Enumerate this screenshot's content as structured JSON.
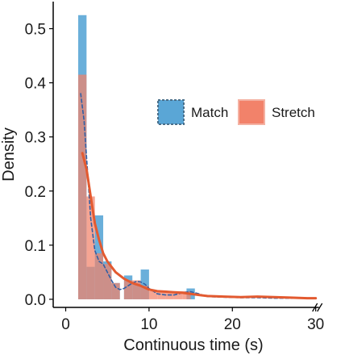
{
  "chart_data": {
    "type": "bar",
    "title": "",
    "xlabel": "Continuous time (s)",
    "ylabel": "Density",
    "xlim": [
      -1.5,
      31
    ],
    "ylim": [
      -0.015,
      0.55
    ],
    "xticks": [
      0,
      10,
      20,
      30
    ],
    "yticks": [
      0.0,
      0.1,
      0.2,
      0.3,
      0.4,
      0.5
    ],
    "ytick_labels": [
      "0.0",
      "0.1",
      "0.2",
      "0.3",
      "0.4",
      "0.5"
    ],
    "grid": false,
    "axis_break_at_x": 30,
    "legend_position": "right",
    "series": [
      {
        "name": "Match",
        "color": "#5aa6d6",
        "bin_width": 1,
        "histogram": [
          {
            "x0": 1.5,
            "x1": 2.5,
            "y": 0.525
          },
          {
            "x0": 2.5,
            "x1": 3.5,
            "y": 0.06
          },
          {
            "x0": 3.5,
            "x1": 4.5,
            "y": 0.155
          },
          {
            "x0": 4.5,
            "x1": 5.5,
            "y": 0.07
          },
          {
            "x0": 5.5,
            "x1": 6.5,
            "y": 0.03
          },
          {
            "x0": 7.0,
            "x1": 8.0,
            "y": 0.044
          },
          {
            "x0": 8.0,
            "x1": 9.0,
            "y": 0.03
          },
          {
            "x0": 9.0,
            "x1": 10.0,
            "y": 0.055
          },
          {
            "x0": 14.5,
            "x1": 15.5,
            "y": 0.02
          }
        ],
        "density_curve": [
          [
            1.8,
            0.38
          ],
          [
            2.2,
            0.33
          ],
          [
            2.6,
            0.24
          ],
          [
            3.0,
            0.15
          ],
          [
            3.5,
            0.09
          ],
          [
            4.0,
            0.07
          ],
          [
            4.5,
            0.065
          ],
          [
            5.0,
            0.05
          ],
          [
            5.5,
            0.035
          ],
          [
            6.0,
            0.022
          ],
          [
            6.5,
            0.018
          ],
          [
            7.0,
            0.02
          ],
          [
            7.5,
            0.025
          ],
          [
            8.0,
            0.03
          ],
          [
            8.5,
            0.033
          ],
          [
            9.0,
            0.032
          ],
          [
            9.5,
            0.028
          ],
          [
            10.0,
            0.02
          ],
          [
            11.0,
            0.01
          ],
          [
            12.0,
            0.008
          ],
          [
            13.0,
            0.008
          ],
          [
            14.0,
            0.012
          ],
          [
            15.0,
            0.014
          ],
          [
            16.0,
            0.01
          ],
          [
            17.0,
            0.005
          ],
          [
            19.0,
            0.004
          ],
          [
            21.0,
            0.003
          ],
          [
            23.0,
            0.003
          ],
          [
            25.0,
            0.002
          ],
          [
            27.0,
            0.002
          ],
          [
            29.0,
            0.002
          ],
          [
            30.0,
            0.002
          ]
        ]
      },
      {
        "name": "Stretch",
        "color": "#f2826a",
        "bin_width": 1,
        "histogram": [
          {
            "x0": 1.5,
            "x1": 2.5,
            "y": 0.415
          },
          {
            "x0": 2.5,
            "x1": 3.5,
            "y": 0.19
          },
          {
            "x0": 3.5,
            "x1": 4.5,
            "y": 0.085
          },
          {
            "x0": 4.5,
            "x1": 5.5,
            "y": 0.065
          },
          {
            "x0": 5.5,
            "x1": 6.5,
            "y": 0.03
          },
          {
            "x0": 7.0,
            "x1": 8.0,
            "y": 0.035
          },
          {
            "x0": 8.0,
            "x1": 9.0,
            "y": 0.035
          },
          {
            "x0": 9.0,
            "x1": 10.0,
            "y": 0.025
          },
          {
            "x0": 10.0,
            "x1": 11.0,
            "y": 0.015
          },
          {
            "x0": 11.0,
            "x1": 12.0,
            "y": 0.015
          },
          {
            "x0": 12.0,
            "x1": 13.0,
            "y": 0.015
          },
          {
            "x0": 13.0,
            "x1": 14.0,
            "y": 0.015
          },
          {
            "x0": 14.0,
            "x1": 15.0,
            "y": 0.015
          }
        ],
        "density_curve": [
          [
            2.0,
            0.27
          ],
          [
            2.5,
            0.24
          ],
          [
            3.0,
            0.19
          ],
          [
            3.5,
            0.14
          ],
          [
            4.0,
            0.11
          ],
          [
            4.5,
            0.085
          ],
          [
            5.0,
            0.07
          ],
          [
            6.0,
            0.05
          ],
          [
            7.0,
            0.038
          ],
          [
            8.0,
            0.03
          ],
          [
            9.0,
            0.025
          ],
          [
            10.0,
            0.018
          ],
          [
            11.0,
            0.015
          ],
          [
            12.0,
            0.014
          ],
          [
            13.0,
            0.013
          ],
          [
            14.0,
            0.012
          ],
          [
            15.0,
            0.01
          ],
          [
            16.0,
            0.008
          ],
          [
            17.0,
            0.006
          ],
          [
            19.0,
            0.005
          ],
          [
            21.0,
            0.004
          ],
          [
            23.0,
            0.005
          ],
          [
            25.0,
            0.004
          ],
          [
            27.0,
            0.003
          ],
          [
            29.0,
            0.002
          ],
          [
            30.0,
            0.002
          ]
        ]
      }
    ]
  },
  "legend": {
    "items": [
      {
        "label": "Match",
        "color": "#5aa6d6",
        "border": "#4a6f8a",
        "border_style": "dashed"
      },
      {
        "label": "Stretch",
        "color": "#f2826a",
        "border": "#f4b1a2",
        "border_style": "solid"
      }
    ]
  },
  "line_colors": {
    "Match": "#2f5fa5",
    "Stretch": "#e35a30"
  }
}
